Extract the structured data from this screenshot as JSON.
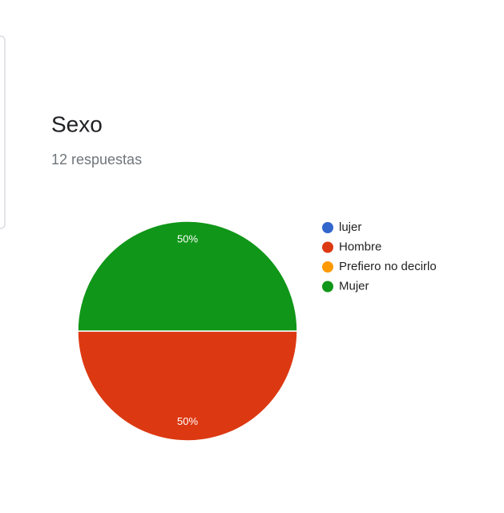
{
  "chart_data": {
    "type": "pie",
    "title": "Sexo",
    "subtitle": "12 respuestas",
    "categories": [
      "lujer",
      "Hombre",
      "Prefiero no decirlo",
      "Mujer"
    ],
    "values": [
      0,
      50,
      0,
      50
    ],
    "value_labels": [
      null,
      "50%",
      null,
      "50%"
    ],
    "colors": [
      "#3366cc",
      "#dc3912",
      "#ff9900",
      "#109618"
    ],
    "legend": "right"
  }
}
